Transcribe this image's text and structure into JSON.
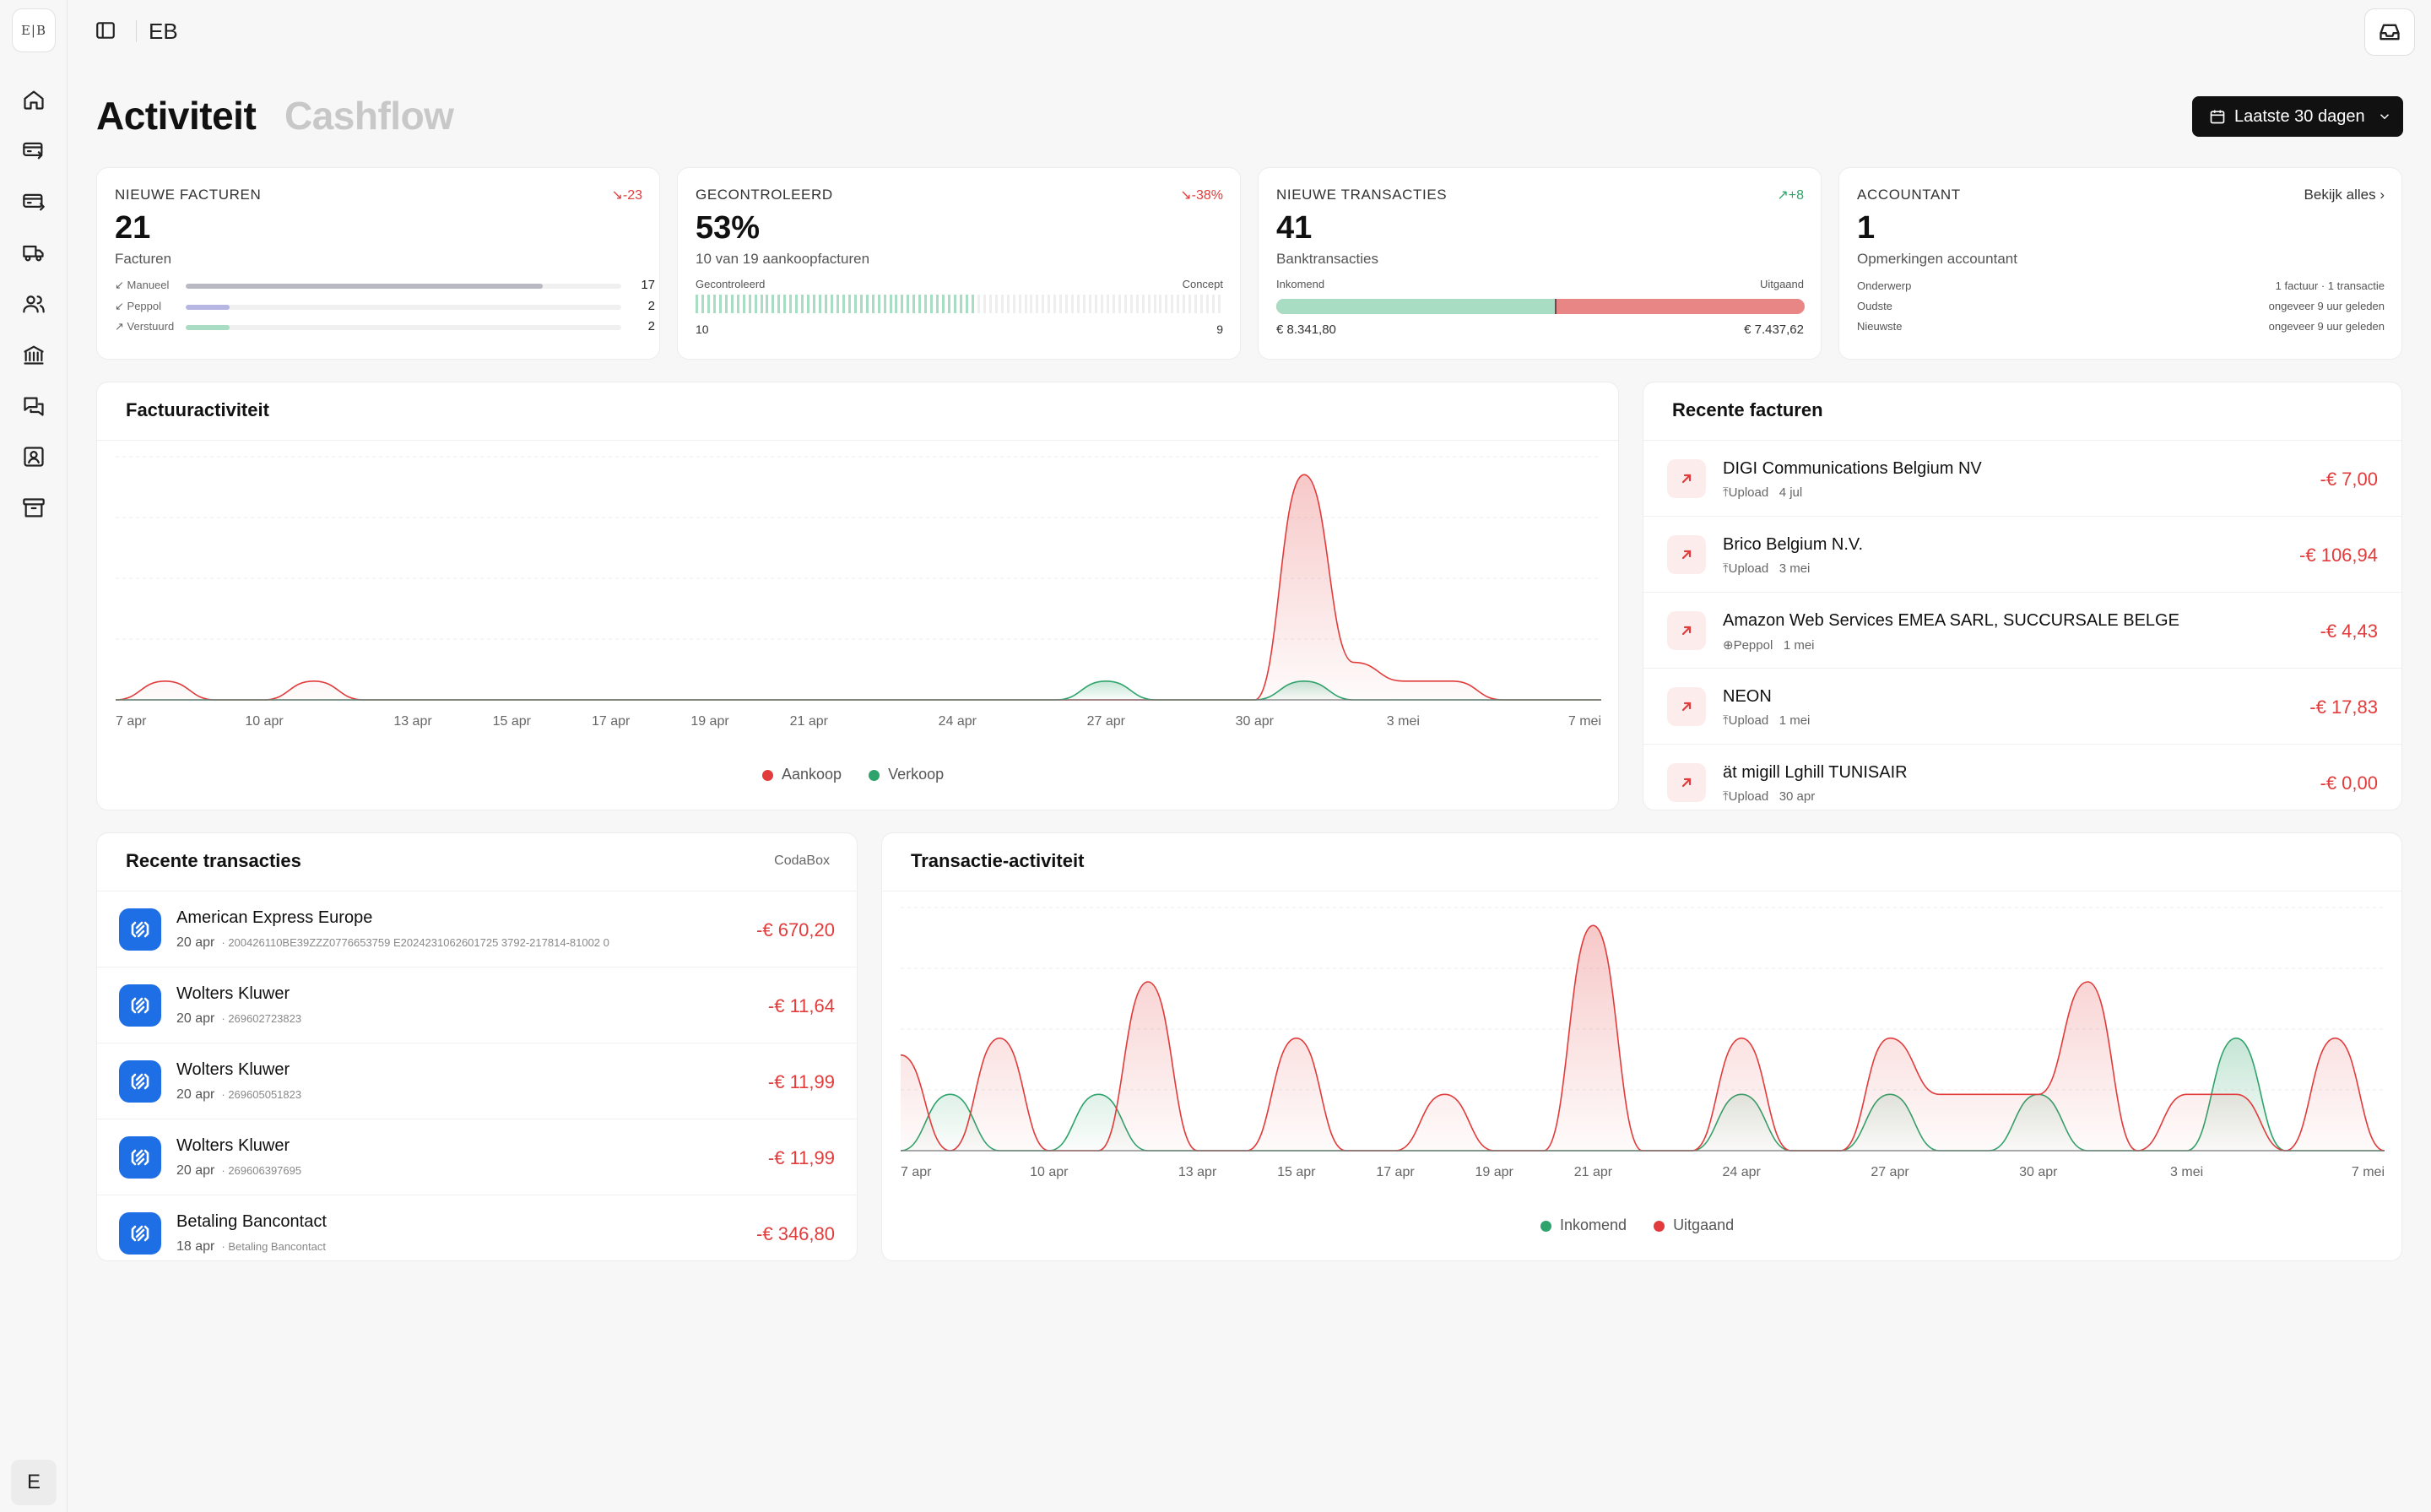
{
  "sidebar": {
    "logo_text": "E|B",
    "icons": [
      "home-icon",
      "invoice-in-icon",
      "invoice-out-icon",
      "truck-icon",
      "users-icon",
      "bank-icon",
      "chat-icon",
      "contact-icon",
      "archive-icon"
    ],
    "user_initial": "E"
  },
  "topbar": {
    "org": "EB"
  },
  "tabs": {
    "active": "Activiteit",
    "inactive": "Cashflow"
  },
  "date_filter": {
    "label": "Laatste 30 dagen"
  },
  "stats": {
    "new_invoices": {
      "title": "NIEUWE FACTUREN",
      "trend": "-23",
      "value": "21",
      "sub": "Facturen",
      "rows": [
        {
          "label": "Manueel",
          "count": "17",
          "fraction": 0.82,
          "color": "#b9b9c4"
        },
        {
          "label": "Peppol",
          "count": "2",
          "fraction": 0.1,
          "color": "#b7b6e3"
        },
        {
          "label": "Verstuurd",
          "count": "2",
          "fraction": 0.1,
          "color": "#a8dcc3"
        }
      ]
    },
    "checked": {
      "title": "GECONTROLEERD",
      "trend": "-38%",
      "value": "53%",
      "sub": "10 van 19 aankoopfacturen",
      "left_label": "Gecontroleerd",
      "right_label": "Concept",
      "left_count": "10",
      "right_count": "9",
      "checked_fraction": 0.53
    },
    "transactions": {
      "title": "NIEUWE TRANSACTIES",
      "trend": "+8",
      "value": "41",
      "sub": "Banktransacties",
      "in_label": "Inkomend",
      "out_label": "Uitgaand",
      "in_amount": "€ 8.341,80",
      "out_amount": "€ 7.437,62",
      "in_fraction": 0.53
    },
    "accountant": {
      "title": "ACCOUNTANT",
      "link": "Bekijk alles",
      "value": "1",
      "sub": "Opmerkingen accountant",
      "rows": [
        {
          "label": "Onderwerp",
          "value": "1 factuur · 1 transactie"
        },
        {
          "label": "Oudste",
          "value": "ongeveer 9 uur geleden"
        },
        {
          "label": "Nieuwste",
          "value": "ongeveer 9 uur geleden"
        }
      ]
    }
  },
  "invoice_activity": {
    "title": "Factuuractiviteit",
    "legend": {
      "purchase": "Aankoop",
      "sale": "Verkoop"
    }
  },
  "recent_invoices": {
    "title": "Recente facturen",
    "items": [
      {
        "name": "DIGI Communications Belgium NV",
        "source": "Upload",
        "date": "4 jul",
        "amount": "-€ 7,00"
      },
      {
        "name": "Brico Belgium N.V.",
        "source": "Upload",
        "date": "3 mei",
        "amount": "-€ 106,94"
      },
      {
        "name": "Amazon Web Services EMEA SARL, SUCCURSALE BELGE",
        "source": "Peppol",
        "date": "1 mei",
        "amount": "-€ 4,43"
      },
      {
        "name": "NEON",
        "source": "Upload",
        "date": "1 mei",
        "amount": "-€ 17,83"
      },
      {
        "name": "ät migill Lghill TUNISAIR",
        "source": "Upload",
        "date": "30 apr",
        "amount": "-€ 0,00"
      }
    ]
  },
  "recent_transactions": {
    "title": "Recente transacties",
    "provider": "CodaBox",
    "items": [
      {
        "name": "American Express Europe",
        "date": "20 apr",
        "ref": "200426110BE39ZZZ0776653759 E2024231062601725 3792-217814-81002 0",
        "amount": "-€ 670,20"
      },
      {
        "name": "Wolters Kluwer",
        "date": "20 apr",
        "ref": "269602723823",
        "amount": "-€ 11,64"
      },
      {
        "name": "Wolters Kluwer",
        "date": "20 apr",
        "ref": "269605051823",
        "amount": "-€ 11,99"
      },
      {
        "name": "Wolters Kluwer",
        "date": "20 apr",
        "ref": "269606397695",
        "amount": "-€ 11,99"
      },
      {
        "name": "Betaling Bancontact",
        "date": "18 apr",
        "ref": "Betaling Bancontact",
        "amount": "-€ 346,80"
      }
    ]
  },
  "transaction_activity": {
    "title": "Transactie-activiteit",
    "legend": {
      "incoming": "Inkomend",
      "outgoing": "Uitgaand"
    }
  },
  "colors": {
    "red": "#e23b3b",
    "green": "#2ea36b",
    "blue": "#1e6ee6"
  },
  "chart_data": [
    {
      "type": "area",
      "title": "Factuuractiviteit",
      "x_labels": [
        "7 apr",
        "10 apr",
        "13 apr",
        "15 apr",
        "17 apr",
        "19 apr",
        "21 apr",
        "24 apr",
        "27 apr",
        "30 apr",
        "3 mei",
        "7 mei"
      ],
      "x_days": [
        7,
        8,
        9,
        10,
        11,
        12,
        13,
        14,
        15,
        16,
        17,
        18,
        19,
        20,
        21,
        22,
        23,
        24,
        25,
        26,
        27,
        28,
        29,
        30,
        31,
        32,
        33,
        34,
        35,
        36,
        37
      ],
      "series": [
        {
          "name": "Aankoop",
          "color": "#e23b3b",
          "values": [
            0,
            1,
            0,
            0,
            1,
            0,
            0,
            0,
            0,
            0,
            0,
            0,
            0,
            0,
            0,
            0,
            0,
            0,
            0,
            0,
            0,
            0,
            0,
            0,
            12,
            2,
            1,
            1,
            0,
            0,
            0
          ]
        },
        {
          "name": "Verkoop",
          "color": "#2ea36b",
          "values": [
            0,
            0,
            0,
            0,
            0,
            0,
            0,
            0,
            0,
            0,
            0,
            0,
            0,
            0,
            0,
            0,
            0,
            0,
            0,
            0,
            1,
            0,
            0,
            0,
            1,
            0,
            0,
            0,
            0,
            0,
            0
          ]
        }
      ]
    },
    {
      "type": "area",
      "title": "Transactie-activiteit",
      "x_labels": [
        "7 apr",
        "10 apr",
        "13 apr",
        "15 apr",
        "17 apr",
        "19 apr",
        "21 apr",
        "24 apr",
        "27 apr",
        "30 apr",
        "3 mei",
        "7 mei"
      ],
      "x_days": [
        7,
        8,
        9,
        10,
        11,
        12,
        13,
        14,
        15,
        16,
        17,
        18,
        19,
        20,
        21,
        22,
        23,
        24,
        25,
        26,
        27,
        28,
        29,
        30,
        31,
        32,
        33,
        34,
        35,
        36,
        37
      ],
      "series": [
        {
          "name": "Inkomend",
          "color": "#2ea36b",
          "values": [
            0,
            1,
            0,
            0,
            1,
            0,
            0,
            0,
            0,
            0,
            0,
            0,
            0,
            0,
            0,
            0,
            0,
            1,
            0,
            0,
            1,
            0,
            0,
            1,
            0,
            0,
            0,
            2,
            0,
            0,
            0
          ]
        },
        {
          "name": "Uitgaand",
          "color": "#e23b3b",
          "values": [
            1.7,
            0,
            2,
            0,
            0,
            3,
            0,
            0,
            2,
            0,
            0,
            1,
            0,
            0,
            4,
            0,
            0,
            2,
            0,
            0,
            2,
            1,
            1,
            1,
            3,
            0,
            1,
            1,
            0,
            2,
            0
          ]
        }
      ]
    }
  ]
}
